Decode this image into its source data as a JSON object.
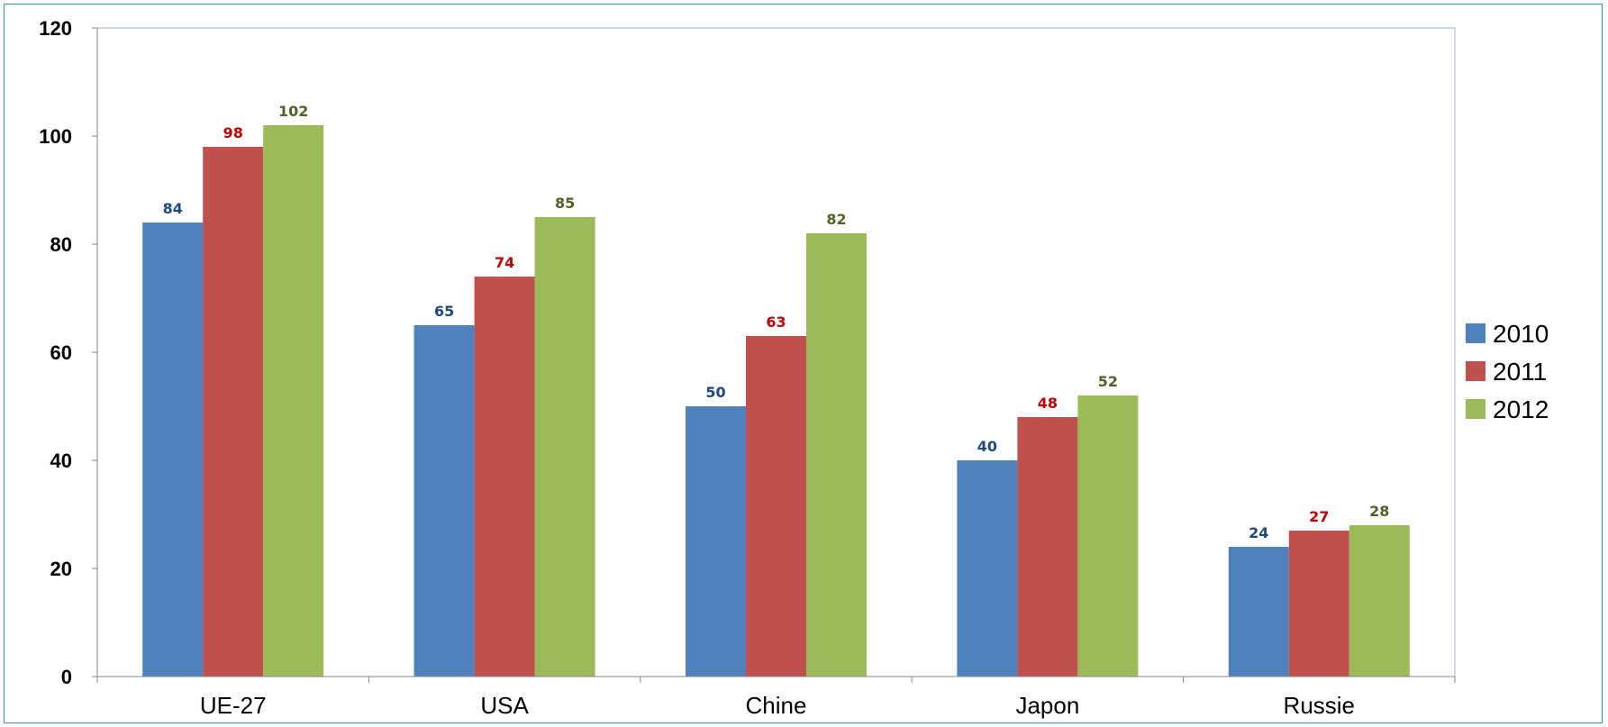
{
  "chart_data": {
    "type": "bar",
    "categories": [
      "UE-27",
      "USA",
      "Chine",
      "Japon",
      "Russie"
    ],
    "series": [
      {
        "name": "2010",
        "values": [
          84,
          65,
          50,
          40,
          24
        ],
        "color": "#4f81bd",
        "label_color": "#1f497d"
      },
      {
        "name": "2011",
        "values": [
          98,
          74,
          63,
          48,
          27
        ],
        "color": "#c0504d",
        "label_color": "#c00000"
      },
      {
        "name": "2012",
        "values": [
          102,
          85,
          82,
          52,
          28
        ],
        "color": "#9bbb59",
        "label_color": "#4f6228"
      }
    ],
    "y_ticks": [
      "0",
      "20",
      "40",
      "60",
      "80",
      "100",
      "120"
    ],
    "ylim": [
      0,
      120
    ],
    "grid": false,
    "legend_position": "right",
    "title": "",
    "xlabel": "",
    "ylabel": ""
  }
}
